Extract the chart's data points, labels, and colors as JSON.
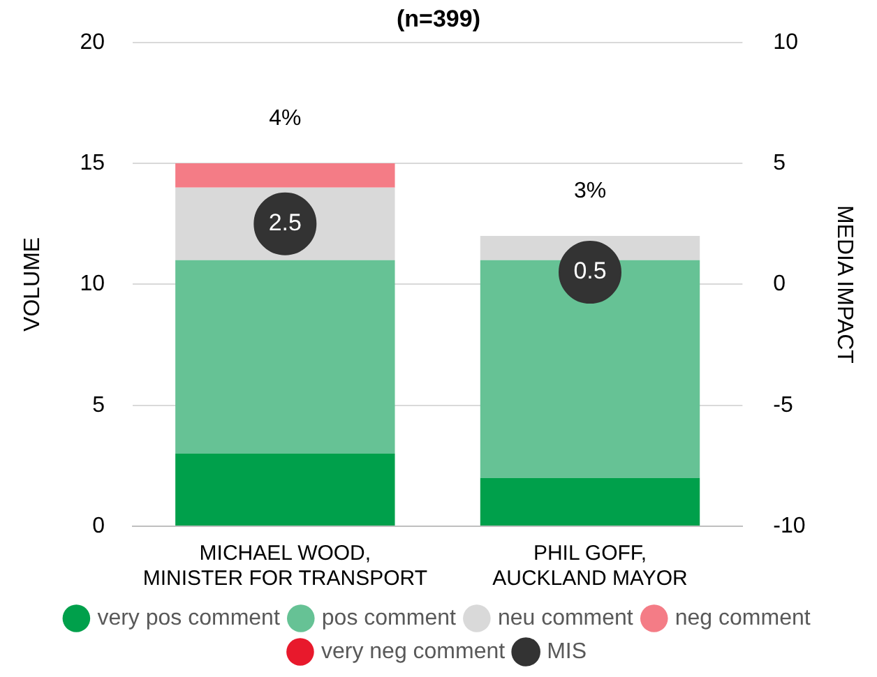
{
  "chart_data": {
    "type": "bar",
    "title": "(n=399)",
    "ylabel": "VOLUME",
    "y2label": "MEDIA IMPACT",
    "categories": [
      "MICHAEL WOOD,\nMINISTER FOR TRANSPORT",
      "PHIL GOFF,\nAUCKLAND MAYOR"
    ],
    "stacked": true,
    "series": [
      {
        "name": "very pos comment",
        "color": "#00a04b",
        "values": [
          3,
          2
        ]
      },
      {
        "name": "pos comment",
        "color": "#66c295",
        "values": [
          8,
          9
        ]
      },
      {
        "name": "neu comment",
        "color": "#d9d9d9",
        "values": [
          3,
          1
        ]
      },
      {
        "name": "neg comment",
        "color": "#f47c86",
        "values": [
          1,
          0
        ]
      },
      {
        "name": "very neg comment",
        "color": "#e8192c",
        "values": [
          0,
          0
        ]
      },
      {
        "name": "MIS",
        "type": "scatter",
        "axis": "y2",
        "color": "#333333",
        "values": [
          2.5,
          0.5
        ],
        "value_labels": [
          "2.5",
          "0.5"
        ]
      }
    ],
    "annotations": [
      "4%",
      "3%"
    ],
    "ylim": [
      0,
      20
    ],
    "yticks": [
      0,
      5,
      10,
      15,
      20
    ],
    "y2lim": [
      -10,
      10
    ],
    "y2ticks": [
      -10,
      -5,
      0,
      5,
      10
    ],
    "grid": "y",
    "legend": "bottom",
    "marker": "circle"
  }
}
